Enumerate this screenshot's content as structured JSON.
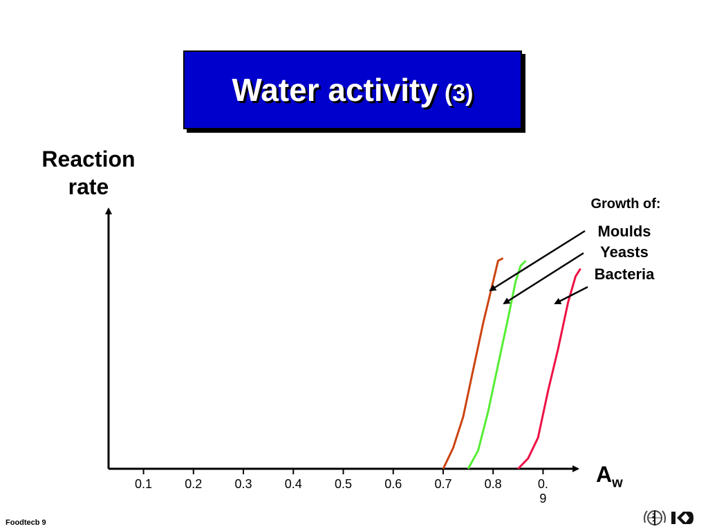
{
  "slide": {
    "title_main": "Water activity",
    "title_sub": "(3)",
    "footer": "Foodtecb 9"
  },
  "chart_data": {
    "type": "line",
    "ylabel": "Reaction\nrate",
    "xlabel_main": "A",
    "xlabel_sub": "w",
    "xlim": [
      0.03,
      0.97
    ],
    "ylim": [
      0,
      1
    ],
    "tick_labels": [
      "0.1",
      "0.2",
      "0.3",
      "0.4",
      "0.5",
      "0.6",
      "0.7",
      "0.8",
      "0.\n9"
    ],
    "tick_values": [
      0.1,
      0.2,
      0.3,
      0.4,
      0.5,
      0.6,
      0.7,
      0.8,
      0.9
    ],
    "legend_title": "Growth of:",
    "series": [
      {
        "name": "Moulds",
        "color": "#cc4411",
        "x": [
          0.7,
          0.72,
          0.74,
          0.76,
          0.78,
          0.8,
          0.81,
          0.82
        ],
        "y": [
          0.0,
          0.08,
          0.2,
          0.38,
          0.56,
          0.72,
          0.8,
          0.81
        ]
      },
      {
        "name": "Yeasts",
        "color": "#55ee33",
        "x": [
          0.75,
          0.77,
          0.79,
          0.81,
          0.83,
          0.845,
          0.855,
          0.865
        ],
        "y": [
          0.0,
          0.07,
          0.22,
          0.4,
          0.58,
          0.72,
          0.78,
          0.8
        ]
      },
      {
        "name": "Bacteria",
        "color": "#ee1144",
        "x": [
          0.85,
          0.87,
          0.89,
          0.91,
          0.93,
          0.95,
          0.965,
          0.975
        ],
        "y": [
          0.0,
          0.04,
          0.12,
          0.3,
          0.46,
          0.64,
          0.74,
          0.77
        ]
      }
    ]
  },
  "icons": {
    "left_logo": "who-emblem-icon",
    "right_logo": "ikd-logo-icon"
  }
}
